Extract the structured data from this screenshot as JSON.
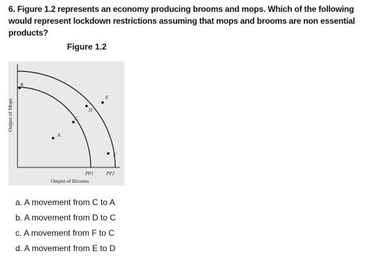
{
  "question": "6. Figure 1.2 represents an economy producing brooms and mops. Which of the following would represent lockdown restrictions assuming that mops and brooms are non essential products?",
  "figure": {
    "title": "Figure 1.2",
    "y_axis_label": "Output of Mops",
    "x_axis_label": "Output of Brooms",
    "curves": [
      "PP1",
      "PP2"
    ],
    "points": [
      "B",
      "C",
      "D",
      "E",
      "A",
      "F"
    ]
  },
  "options": [
    "a.  A movement from C to A",
    "b.  A movement from D to C",
    "c.  A movement from F to C",
    "d.  A movement from E to D"
  ]
}
